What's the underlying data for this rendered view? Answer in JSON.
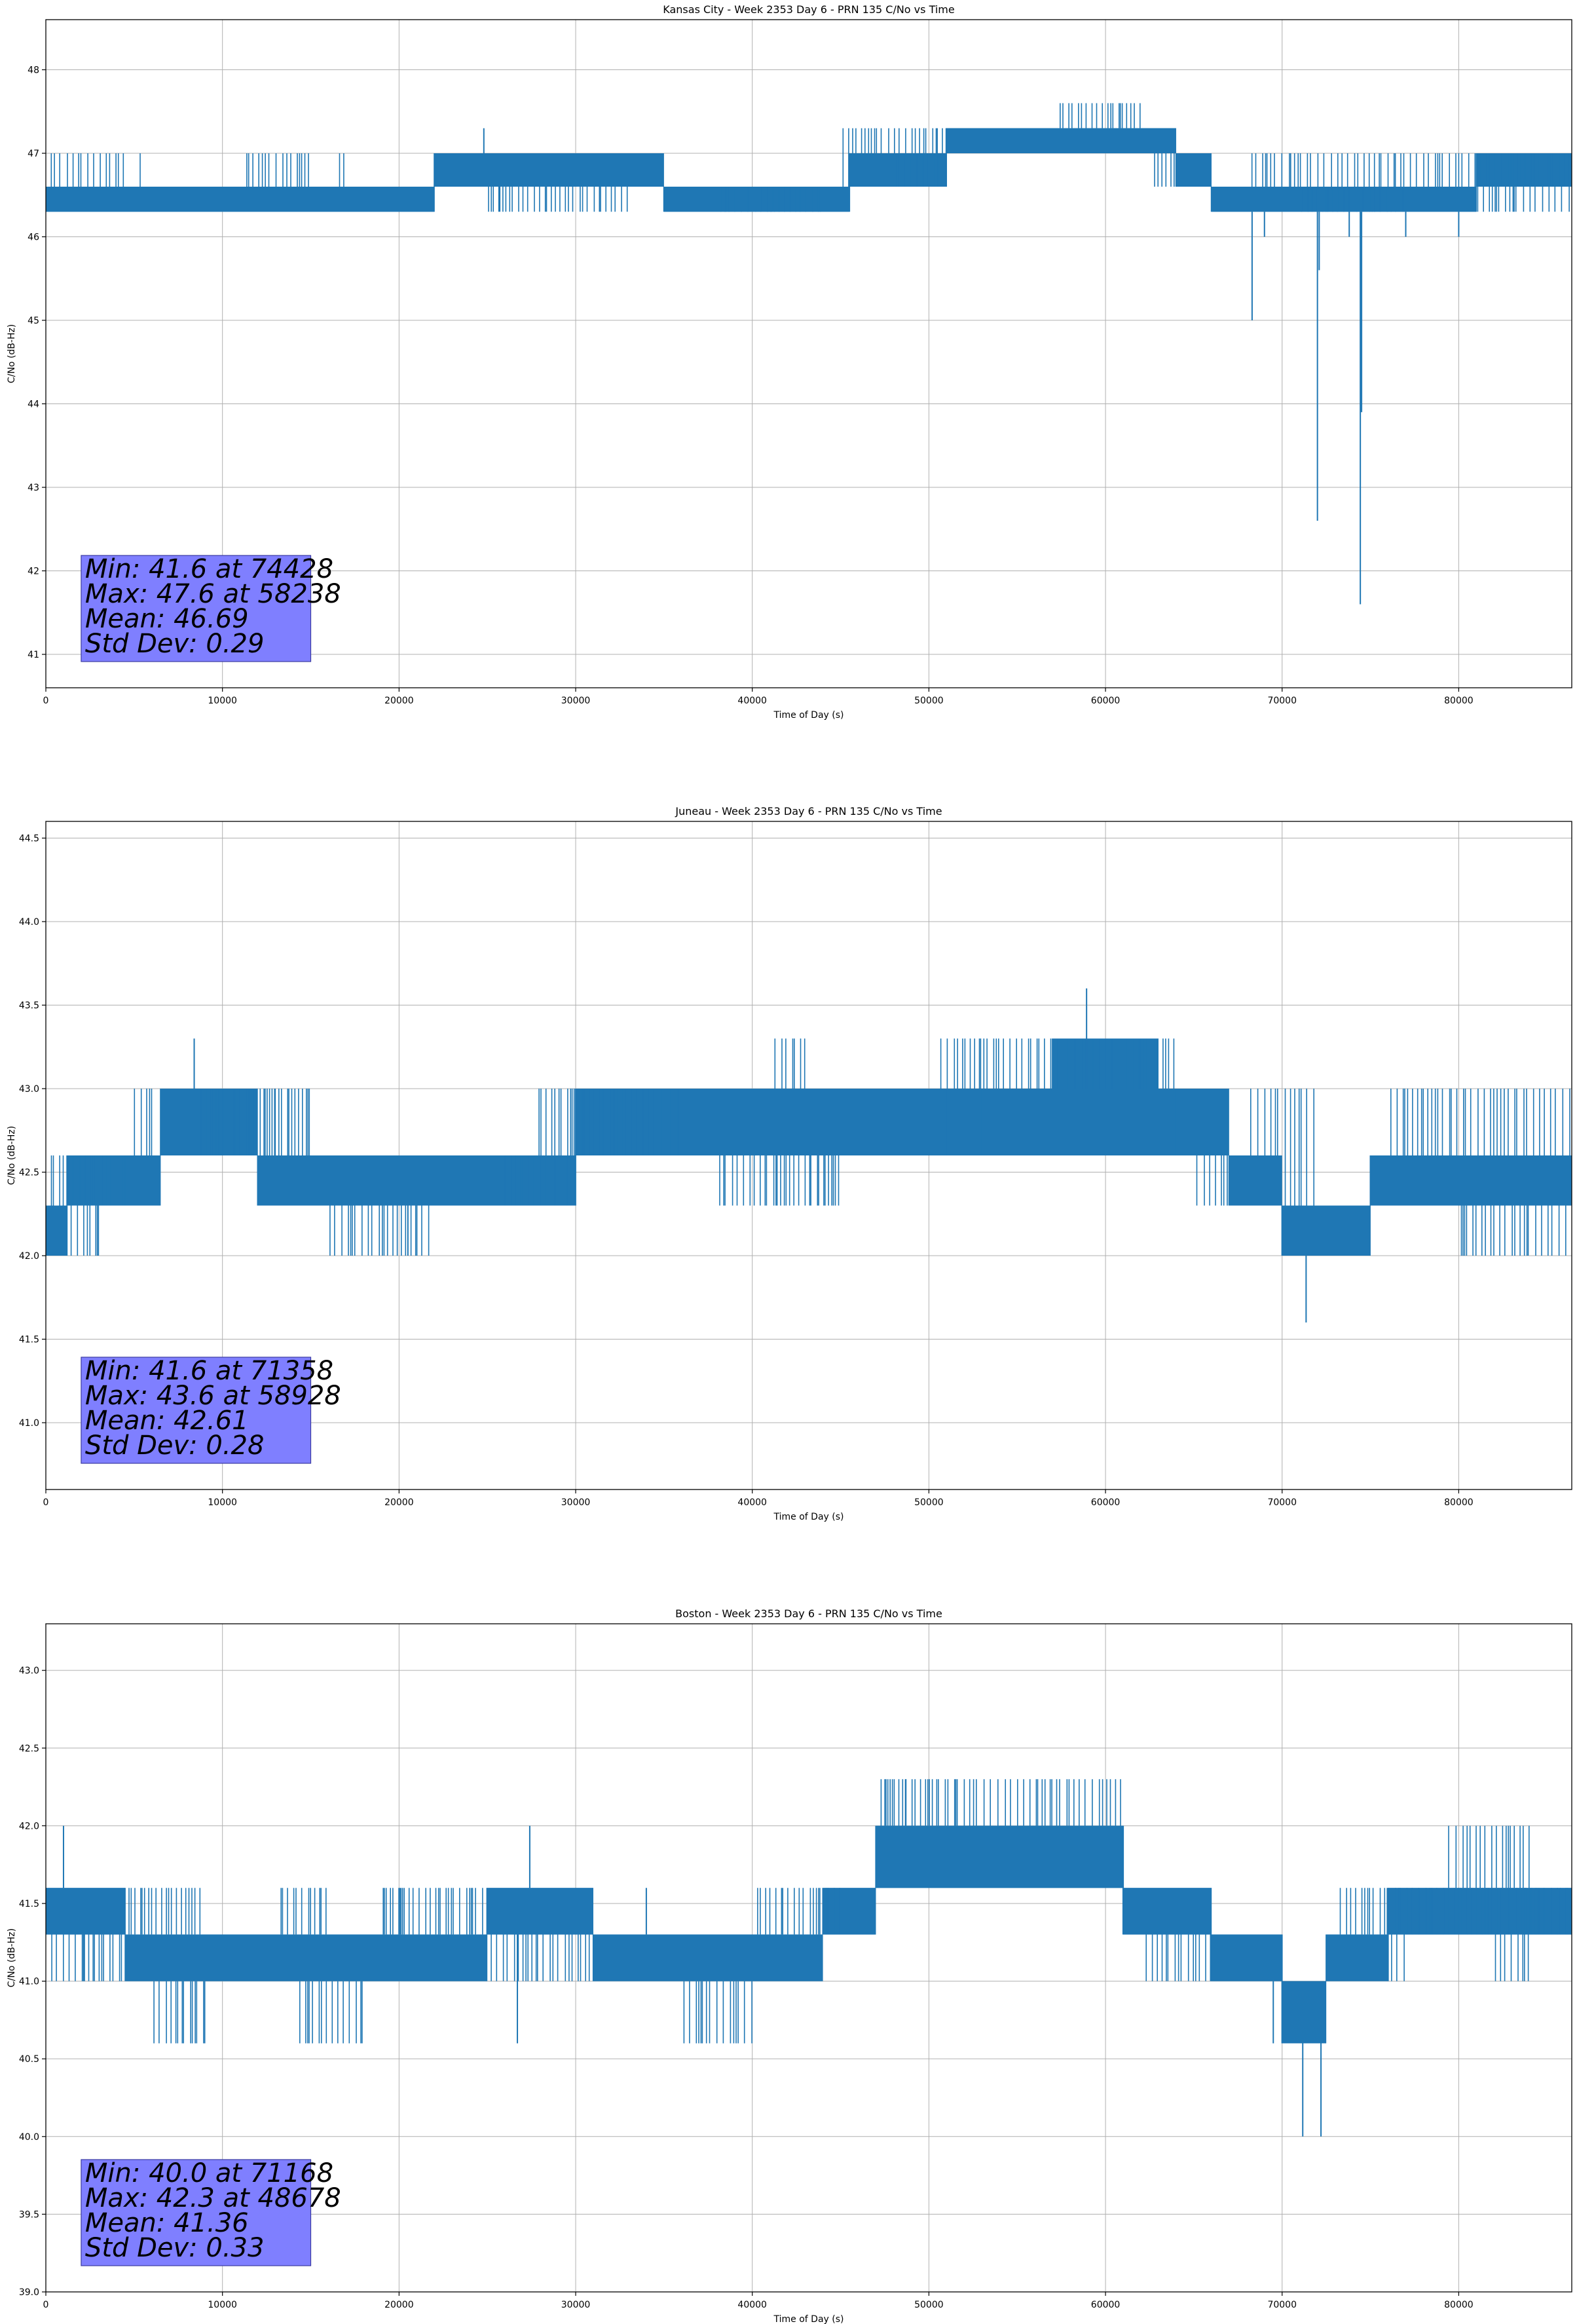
{
  "chart_data": [
    {
      "type": "line",
      "title": "Kansas City - Week 2353 Day 6 - PRN 135 C/No vs Time",
      "xlabel": "Time of Day (s)",
      "ylabel": "C/No (dB-Hz)",
      "xlim": [
        0,
        86400
      ],
      "ylim": [
        40.6,
        48.6
      ],
      "xticks": [
        0,
        10000,
        20000,
        30000,
        40000,
        50000,
        60000,
        70000,
        80000
      ],
      "yticks": [
        41,
        42,
        43,
        44,
        45,
        46,
        47,
        48
      ],
      "ytick_decimals": 0,
      "grid": true,
      "color": "#1f77b4",
      "stats": [
        "Min: 41.6 at 74428",
        "Max: 47.6 at 58238",
        "Mean: 46.69",
        "Std Dev: 0.29"
      ],
      "series": [
        {
          "values_band": [
            {
              "x": [
                0,
                22000
              ],
              "y": [
                46.3,
                46.6
              ]
            },
            {
              "x": [
                22000,
                35000
              ],
              "y": [
                46.6,
                47.0
              ]
            },
            {
              "x": [
                35000,
                45500
              ],
              "y": [
                46.3,
                46.6
              ]
            },
            {
              "x": [
                45500,
                51000
              ],
              "y": [
                46.6,
                47.0
              ]
            },
            {
              "x": [
                51000,
                64000
              ],
              "y": [
                47.0,
                47.3
              ]
            },
            {
              "x": [
                64000,
                66000
              ],
              "y": [
                46.6,
                47.0
              ]
            },
            {
              "x": [
                66000,
                81000
              ],
              "y": [
                46.3,
                46.6
              ]
            },
            {
              "x": [
                81000,
                86400
              ],
              "y": [
                46.6,
                47.0
              ]
            }
          ],
          "bursts": [
            {
              "x": [
                0,
                4500
              ],
              "y": 47.0
            },
            {
              "x": [
                5200,
                5600
              ],
              "y": 47.0
            },
            {
              "x": [
                9000,
                9300
              ],
              "y": 47.0
            },
            {
              "x": [
                11000,
                15000
              ],
              "y": 47.0
            },
            {
              "x": [
                16200,
                17000
              ],
              "y": 47.0
            },
            {
              "x": [
                17000,
                22000
              ],
              "y": 46.3
            },
            {
              "x": [
                25000,
                33000
              ],
              "y": 46.3
            },
            {
              "x": [
                26000,
                31000
              ],
              "y": 46.6
            },
            {
              "x": [
                38000,
                44000
              ],
              "y": 46.6
            },
            {
              "x": [
                45000,
                51000
              ],
              "y": 47.3
            },
            {
              "x": [
                48000,
                52000
              ],
              "y": 47.0
            },
            {
              "x": [
                57000,
                62000
              ],
              "y": 47.6
            },
            {
              "x": [
                62500,
                64500
              ],
              "y": 46.6
            },
            {
              "x": [
                68000,
                86400
              ],
              "y": 47.0
            },
            {
              "x": [
                71000,
                77000
              ],
              "y": 46.6
            },
            {
              "x": [
                80000,
                86400
              ],
              "y": 46.3
            }
          ],
          "spikes": [
            {
              "x": 24800,
              "y": 47.3
            },
            {
              "x": 68300,
              "y": 45.0
            },
            {
              "x": 69000,
              "y": 46.0
            },
            {
              "x": 72000,
              "y": 42.6
            },
            {
              "x": 72100,
              "y": 45.6
            },
            {
              "x": 74428,
              "y": 41.6
            },
            {
              "x": 74500,
              "y": 43.9
            },
            {
              "x": 73800,
              "y": 46.0
            },
            {
              "x": 77000,
              "y": 46.0
            },
            {
              "x": 80000,
              "y": 46.0
            }
          ]
        }
      ]
    },
    {
      "type": "line",
      "title": "Juneau - Week 2353 Day 6 - PRN 135 C/No vs Time",
      "xlabel": "Time of Day (s)",
      "ylabel": "C/No (dB-Hz)",
      "xlim": [
        0,
        86400
      ],
      "ylim": [
        40.6,
        44.6
      ],
      "xticks": [
        0,
        10000,
        20000,
        30000,
        40000,
        50000,
        60000,
        70000,
        80000
      ],
      "yticks": [
        41.0,
        41.5,
        42.0,
        42.5,
        43.0,
        43.5,
        44.0,
        44.5
      ],
      "ytick_decimals": 1,
      "grid": true,
      "color": "#1f77b4",
      "stats": [
        "Min: 41.6 at 71358",
        "Max: 43.6 at 58928",
        "Mean: 42.61",
        "Std Dev: 0.28"
      ],
      "series": [
        {
          "values_band": [
            {
              "x": [
                0,
                1200
              ],
              "y": [
                42.0,
                42.3
              ]
            },
            {
              "x": [
                1200,
                4500
              ],
              "y": [
                42.3,
                42.6
              ]
            },
            {
              "x": [
                4500,
                6500
              ],
              "y": [
                42.3,
                42.6
              ]
            },
            {
              "x": [
                6500,
                12000
              ],
              "y": [
                42.6,
                43.0
              ]
            },
            {
              "x": [
                12000,
                26000
              ],
              "y": [
                42.3,
                42.6
              ]
            },
            {
              "x": [
                26000,
                30000
              ],
              "y": [
                42.3,
                42.6
              ]
            },
            {
              "x": [
                30000,
                51000
              ],
              "y": [
                42.6,
                43.0
              ]
            },
            {
              "x": [
                51000,
                53000
              ],
              "y": [
                42.6,
                43.0
              ]
            },
            {
              "x": [
                53000,
                64000
              ],
              "y": [
                42.6,
                43.0
              ]
            },
            {
              "x": [
                57000,
                63000
              ],
              "y": [
                43.0,
                43.3
              ]
            },
            {
              "x": [
                64000,
                67000
              ],
              "y": [
                42.6,
                43.0
              ]
            },
            {
              "x": [
                67000,
                70000
              ],
              "y": [
                42.3,
                42.6
              ]
            },
            {
              "x": [
                70000,
                75000
              ],
              "y": [
                42.0,
                42.3
              ]
            },
            {
              "x": [
                75000,
                86400
              ],
              "y": [
                42.3,
                42.6
              ]
            }
          ],
          "bursts": [
            {
              "x": [
                0,
                4500
              ],
              "y": 42.6
            },
            {
              "x": [
                1000,
                3000
              ],
              "y": 42.0
            },
            {
              "x": [
                4800,
                6000
              ],
              "y": 43.0
            },
            {
              "x": [
                8500,
                13000
              ],
              "y": 43.0
            },
            {
              "x": [
                12500,
                15000
              ],
              "y": 43.0
            },
            {
              "x": [
                16000,
                22000
              ],
              "y": 42.0
            },
            {
              "x": [
                26000,
                31000
              ],
              "y": 42.6
            },
            {
              "x": [
                27500,
                36000
              ],
              "y": 43.0
            },
            {
              "x": [
                38000,
                45000
              ],
              "y": 42.3
            },
            {
              "x": [
                41000,
                43000
              ],
              "y": 43.3
            },
            {
              "x": [
                50500,
                64000
              ],
              "y": 43.3
            },
            {
              "x": [
                53000,
                56000
              ],
              "y": 42.6
            },
            {
              "x": [
                60000,
                66000
              ],
              "y": 42.6
            },
            {
              "x": [
                65000,
                68000
              ],
              "y": 42.3
            },
            {
              "x": [
                68000,
                72000
              ],
              "y": 43.0
            },
            {
              "x": [
                76000,
                86400
              ],
              "y": 43.0
            },
            {
              "x": [
                80000,
                86400
              ],
              "y": 42.0
            }
          ],
          "spikes": [
            {
              "x": 8400,
              "y": 43.3
            },
            {
              "x": 58928,
              "y": 43.6
            },
            {
              "x": 71358,
              "y": 41.6
            },
            {
              "x": 20500,
              "y": 42.0
            },
            {
              "x": 13500,
              "y": 42.3
            }
          ]
        }
      ]
    },
    {
      "type": "line",
      "title": "Boston - Week 2353 Day 6 - PRN 135 C/No vs Time",
      "xlabel": "Time of Day (s)",
      "ylabel": "C/No (dB-Hz)",
      "xlim": [
        0,
        86400
      ],
      "ylim": [
        39.0,
        43.3
      ],
      "xticks": [
        0,
        10000,
        20000,
        30000,
        40000,
        50000,
        60000,
        70000,
        80000
      ],
      "yticks": [
        39.0,
        39.5,
        40.0,
        40.5,
        41.0,
        41.5,
        42.0,
        42.5,
        43.0
      ],
      "ytick_decimals": 1,
      "grid": true,
      "color": "#1f77b4",
      "stats": [
        "Min: 40.0 at 71168",
        "Max: 42.3 at 48678",
        "Mean: 41.36",
        "Std Dev: 0.33"
      ],
      "series": [
        {
          "values_band": [
            {
              "x": [
                0,
                4500
              ],
              "y": [
                41.3,
                41.6
              ]
            },
            {
              "x": [
                4500,
                25000
              ],
              "y": [
                41.0,
                41.3
              ]
            },
            {
              "x": [
                25000,
                31000
              ],
              "y": [
                41.3,
                41.6
              ]
            },
            {
              "x": [
                31000,
                44000
              ],
              "y": [
                41.0,
                41.3
              ]
            },
            {
              "x": [
                44000,
                47000
              ],
              "y": [
                41.3,
                41.6
              ]
            },
            {
              "x": [
                47000,
                61000
              ],
              "y": [
                41.6,
                42.0
              ]
            },
            {
              "x": [
                61000,
                66000
              ],
              "y": [
                41.3,
                41.6
              ]
            },
            {
              "x": [
                66000,
                70000
              ],
              "y": [
                41.0,
                41.3
              ]
            },
            {
              "x": [
                70000,
                72500
              ],
              "y": [
                40.6,
                41.0
              ]
            },
            {
              "x": [
                72500,
                76000
              ],
              "y": [
                41.0,
                41.3
              ]
            },
            {
              "x": [
                76000,
                86400
              ],
              "y": [
                41.3,
                41.6
              ]
            }
          ],
          "bursts": [
            {
              "x": [
                0,
                4500
              ],
              "y": 41.0
            },
            {
              "x": [
                4500,
                9000
              ],
              "y": 41.6
            },
            {
              "x": [
                6000,
                9000
              ],
              "y": 40.6
            },
            {
              "x": [
                13000,
                16000
              ],
              "y": 41.6
            },
            {
              "x": [
                14000,
                18000
              ],
              "y": 40.6
            },
            {
              "x": [
                19000,
                25000
              ],
              "y": 41.6
            },
            {
              "x": [
                25000,
                31000
              ],
              "y": 41.0
            },
            {
              "x": [
                36000,
                40000
              ],
              "y": 40.6
            },
            {
              "x": [
                40000,
                45000
              ],
              "y": 41.6
            },
            {
              "x": [
                47000,
                61000
              ],
              "y": 42.3
            },
            {
              "x": [
                50000,
                60000
              ],
              "y": 41.6
            },
            {
              "x": [
                61000,
                66000
              ],
              "y": 41.3
            },
            {
              "x": [
                62000,
                67000
              ],
              "y": 41.0
            },
            {
              "x": [
                73000,
                86400
              ],
              "y": 41.6
            },
            {
              "x": [
                74000,
                77000
              ],
              "y": 41.0
            },
            {
              "x": [
                79000,
                84000
              ],
              "y": 42.0
            },
            {
              "x": [
                82000,
                84000
              ],
              "y": 41.0
            }
          ],
          "spikes": [
            {
              "x": 1000,
              "y": 42.0
            },
            {
              "x": 27400,
              "y": 42.0
            },
            {
              "x": 26700,
              "y": 40.6
            },
            {
              "x": 34000,
              "y": 41.6
            },
            {
              "x": 48678,
              "y": 42.3
            },
            {
              "x": 71168,
              "y": 40.0
            },
            {
              "x": 72200,
              "y": 40.0
            },
            {
              "x": 69500,
              "y": 40.6
            }
          ]
        }
      ]
    }
  ]
}
